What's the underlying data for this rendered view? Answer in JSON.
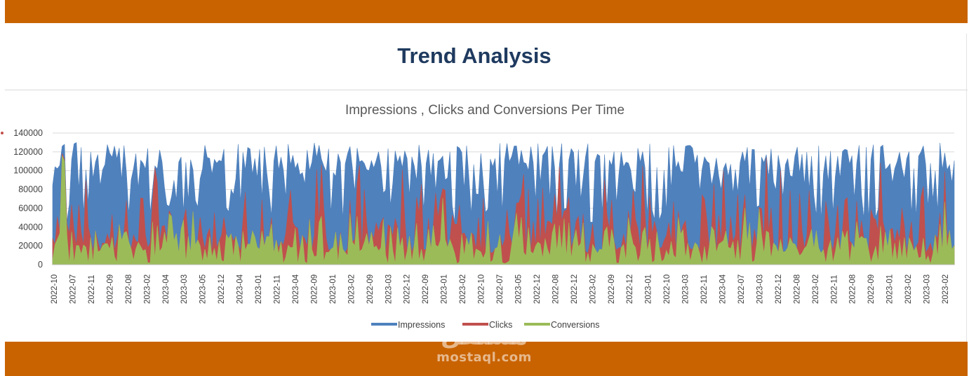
{
  "header": {
    "title": "Trend Analysis"
  },
  "colors": {
    "band": "#c96300",
    "impressions": "#4f81bd",
    "clicks": "#c0504d",
    "conversions": "#9bbb59",
    "title": "#1f3a5f"
  },
  "watermark": {
    "arabic": "مستقل",
    "latin": "mostaql.com"
  },
  "chart_data": {
    "type": "area",
    "title": "Impressions , Clicks and Conversions Per Time",
    "xlabel": "",
    "ylabel": "",
    "ylim": [
      0,
      140000
    ],
    "yticks": [
      0,
      20000,
      40000,
      60000,
      80000,
      100000,
      120000,
      140000
    ],
    "grid": true,
    "legend_position": "bottom",
    "x_tick_labels": [
      "2022-10",
      "2022-07",
      "2022-11",
      "2022-09",
      "2022-08",
      "2023-02",
      "2023-04",
      "2023-03",
      "2023-05",
      "2022-12",
      "2023-04",
      "2023-01",
      "2022-11",
      "2023-04",
      "2022-09",
      "2023-01",
      "2023-02",
      "2022-09",
      "2023-03",
      "2022-12",
      "2022-09",
      "2023-01",
      "2023-02",
      "2022-10",
      "2022-07",
      "2023-05",
      "2022-12",
      "2022-08",
      "2022-12",
      "2023-02",
      "2022-09",
      "2022-12",
      "2023-01",
      "2022-10",
      "2023-03",
      "2022-11",
      "2023-04",
      "2022-07",
      "2023-03",
      "2022-12",
      "2022-08",
      "2023-02",
      "2022-11",
      "2022-08",
      "2022-09",
      "2023-01",
      "2023-02",
      "2023-03",
      "2023-02"
    ],
    "series": [
      {
        "name": "Impressions",
        "color": "#4f81bd",
        "approx_min": 40000,
        "approx_max": 130000
      },
      {
        "name": "Clicks",
        "color": "#c0504d",
        "approx_min": 10000,
        "approx_max": 118000
      },
      {
        "name": "Conversions",
        "color": "#9bbb59",
        "approx_min": 0,
        "approx_max": 115000
      }
    ]
  }
}
